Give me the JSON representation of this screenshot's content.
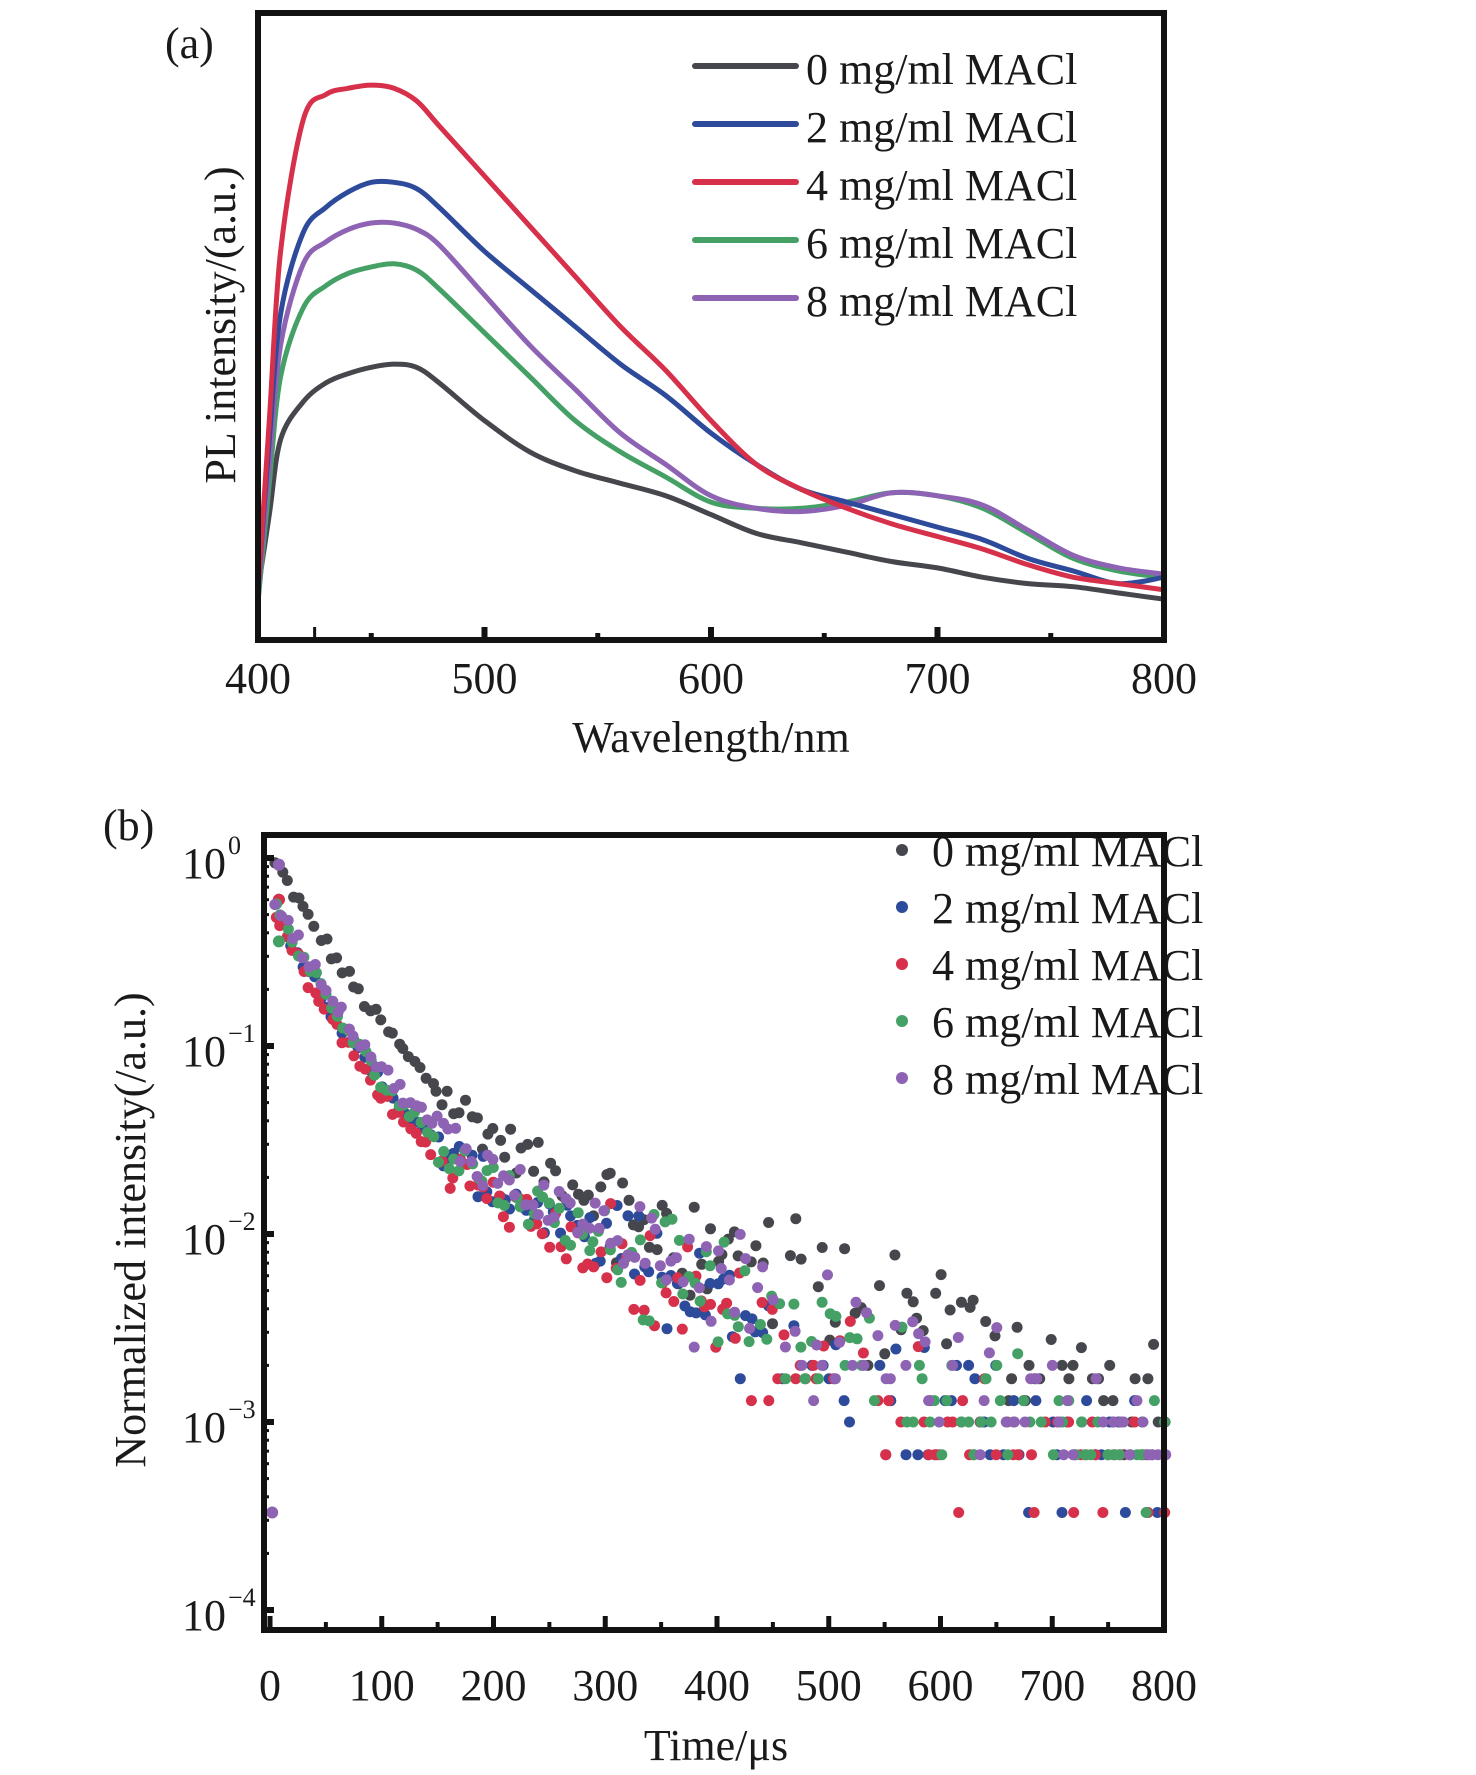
{
  "chart_data": [
    {
      "panel_label": "(a)",
      "type": "line",
      "title": "",
      "xlabel": "Wavelength/nm",
      "ylabel": "PL intensity/(a.u.)",
      "xlim": [
        400,
        800
      ],
      "ylim": [
        0,
        1
      ],
      "x_ticks": [
        400,
        500,
        600,
        700,
        800
      ],
      "x_tick_labels": [
        "400",
        "500",
        "600",
        "700",
        "800"
      ],
      "y_ticks_shown": false,
      "grid": false,
      "legend_position": "top-right",
      "series": [
        {
          "name": "0 mg/ml MACl",
          "color": "#46474d",
          "x": [
            400,
            405,
            410,
            420,
            430,
            440,
            450,
            460,
            470,
            480,
            500,
            520,
            540,
            560,
            580,
            600,
            620,
            640,
            660,
            680,
            700,
            720,
            740,
            760,
            780,
            800
          ],
          "y": [
            0.08,
            0.2,
            0.32,
            0.38,
            0.41,
            0.425,
            0.435,
            0.44,
            0.435,
            0.41,
            0.35,
            0.3,
            0.27,
            0.25,
            0.23,
            0.2,
            0.17,
            0.155,
            0.14,
            0.125,
            0.115,
            0.1,
            0.09,
            0.085,
            0.075,
            0.065
          ]
        },
        {
          "name": "2 mg/ml MACl",
          "color": "#2e4a9a",
          "x": [
            400,
            405,
            410,
            420,
            430,
            440,
            450,
            460,
            470,
            480,
            500,
            520,
            540,
            560,
            580,
            600,
            620,
            640,
            660,
            680,
            700,
            720,
            740,
            760,
            780,
            800
          ],
          "y": [
            0.08,
            0.32,
            0.52,
            0.65,
            0.69,
            0.715,
            0.73,
            0.73,
            0.72,
            0.69,
            0.62,
            0.56,
            0.5,
            0.44,
            0.39,
            0.33,
            0.28,
            0.24,
            0.22,
            0.2,
            0.18,
            0.16,
            0.13,
            0.11,
            0.09,
            0.1
          ]
        },
        {
          "name": "4 mg/ml MACl",
          "color": "#d6304a",
          "x": [
            400,
            405,
            410,
            420,
            430,
            440,
            450,
            460,
            470,
            480,
            500,
            520,
            540,
            560,
            580,
            600,
            620,
            640,
            660,
            680,
            700,
            720,
            740,
            760,
            780,
            800
          ],
          "y": [
            0.08,
            0.35,
            0.62,
            0.83,
            0.87,
            0.88,
            0.885,
            0.88,
            0.86,
            0.82,
            0.74,
            0.66,
            0.58,
            0.5,
            0.43,
            0.35,
            0.28,
            0.24,
            0.21,
            0.185,
            0.165,
            0.145,
            0.12,
            0.1,
            0.09,
            0.08
          ]
        },
        {
          "name": "6 mg/ml MACl",
          "color": "#45a066",
          "x": [
            400,
            405,
            410,
            420,
            430,
            440,
            450,
            460,
            470,
            480,
            500,
            520,
            540,
            560,
            580,
            600,
            620,
            640,
            660,
            680,
            700,
            720,
            740,
            760,
            780,
            800
          ],
          "y": [
            0.06,
            0.25,
            0.42,
            0.53,
            0.565,
            0.585,
            0.595,
            0.6,
            0.59,
            0.56,
            0.49,
            0.42,
            0.35,
            0.3,
            0.26,
            0.22,
            0.21,
            0.21,
            0.22,
            0.235,
            0.23,
            0.21,
            0.17,
            0.13,
            0.11,
            0.1
          ]
        },
        {
          "name": "8 mg/ml MACl",
          "color": "#8e63b4",
          "x": [
            400,
            405,
            410,
            420,
            430,
            440,
            450,
            460,
            470,
            480,
            500,
            520,
            540,
            560,
            580,
            600,
            620,
            640,
            660,
            680,
            700,
            720,
            740,
            760,
            780,
            800
          ],
          "y": [
            0.07,
            0.28,
            0.47,
            0.6,
            0.635,
            0.655,
            0.665,
            0.665,
            0.655,
            0.63,
            0.55,
            0.47,
            0.4,
            0.33,
            0.28,
            0.23,
            0.21,
            0.205,
            0.215,
            0.235,
            0.23,
            0.215,
            0.175,
            0.135,
            0.115,
            0.105
          ]
        }
      ]
    },
    {
      "panel_label": "(b)",
      "type": "scatter",
      "title": "",
      "xlabel": "Time/μs",
      "ylabel": "Normalized intensity(/a.u.)",
      "xlim": [
        -10,
        800
      ],
      "ylim": [
        0.0001,
        1.5
      ],
      "yscale": "log",
      "x_ticks": [
        0,
        100,
        200,
        300,
        400,
        500,
        600,
        700,
        800
      ],
      "x_tick_labels": [
        "0",
        "100",
        "200",
        "300",
        "400",
        "500",
        "600",
        "700",
        "800"
      ],
      "y_ticks": [
        1,
        0.1,
        0.01,
        0.001,
        0.0001
      ],
      "y_tick_labels": [
        {
          "base": "10",
          "exp": "0"
        },
        {
          "base": "10",
          "exp": "−1"
        },
        {
          "base": "10",
          "exp": "−2"
        },
        {
          "base": "10",
          "exp": "−3"
        },
        {
          "base": "10",
          "exp": "−4"
        }
      ],
      "grid": false,
      "legend_position": "top-right",
      "series": [
        {
          "name": "0 mg/ml MACl",
          "color": "#46474d",
          "decay": {
            "A": 0.95,
            "tau_fast": 42,
            "B": 0.075,
            "tau_slow": 180,
            "floor": 0.0013
          }
        },
        {
          "name": "2 mg/ml MACl",
          "color": "#2e4a9a",
          "decay": {
            "A": 0.55,
            "tau_fast": 35,
            "B": 0.06,
            "tau_slow": 150,
            "floor": 0.0009
          }
        },
        {
          "name": "4 mg/ml MACl",
          "color": "#d6304a",
          "decay": {
            "A": 0.5,
            "tau_fast": 34,
            "B": 0.055,
            "tau_slow": 145,
            "floor": 0.0007
          }
        },
        {
          "name": "6 mg/ml MACl",
          "color": "#45a066",
          "decay": {
            "A": 0.55,
            "tau_fast": 36,
            "B": 0.06,
            "tau_slow": 155,
            "floor": 0.0009
          }
        },
        {
          "name": "8 mg/ml MACl",
          "color": "#8e63b4",
          "decay": {
            "A": 0.6,
            "tau_fast": 37,
            "B": 0.065,
            "tau_slow": 160,
            "floor": 0.001
          }
        }
      ],
      "quantization_levels": [
        0.00033,
        0.00067,
        0.001,
        0.0013,
        0.0017,
        0.002
      ],
      "annotations": [
        {
          "text": "isolated point near t≈0 at ~3.3e-4",
          "x": 0,
          "y": 0.00033
        }
      ]
    }
  ]
}
